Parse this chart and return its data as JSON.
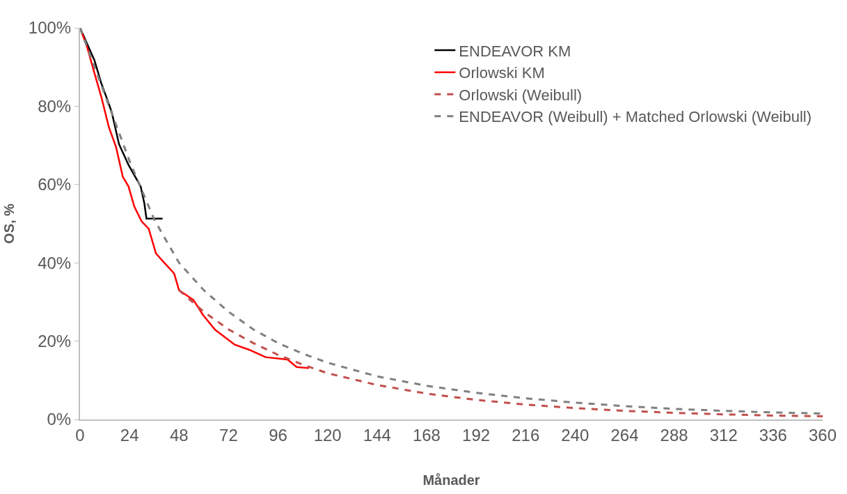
{
  "chart_data": {
    "type": "line",
    "xlabel": "Månader",
    "ylabel": "OS, %",
    "xlim": [
      0,
      360
    ],
    "xticks": [
      0,
      24,
      48,
      72,
      96,
      120,
      144,
      168,
      192,
      216,
      240,
      264,
      288,
      312,
      336,
      360
    ],
    "ylim": [
      0,
      100
    ],
    "yticks": [
      {
        "value": 0,
        "label": "0%"
      },
      {
        "value": 20,
        "label": "20%"
      },
      {
        "value": 40,
        "label": "40%"
      },
      {
        "value": 60,
        "label": "60%"
      },
      {
        "value": 80,
        "label": "80%"
      },
      {
        "value": 100,
        "label": "100%"
      }
    ],
    "grid": false,
    "legend": "top right",
    "marker": "none",
    "series": [
      {
        "name": "ENDEAVOR KM",
        "color": "#000000",
        "line_style": "solid",
        "x": [
          0,
          7,
          10.2,
          13,
          15.4,
          18.9,
          23.5,
          29.4,
          31.2,
          32.2,
          40
        ],
        "values": [
          100,
          91.7,
          86,
          82,
          78.4,
          70.3,
          65,
          59.5,
          55.1,
          51.3,
          51.3
        ]
      },
      {
        "name": "Orlowski KM",
        "color": "#ff0000",
        "line_style": "solid",
        "x": [
          0,
          0.7,
          3.5,
          7,
          10.5,
          14,
          17.5,
          20.7,
          23.5,
          26.3,
          29.8,
          33.3,
          36.8,
          40,
          45.6,
          48,
          55,
          59.6,
          65.5,
          75,
          82,
          90,
          100.6,
          105,
          111
        ],
        "values": [
          100,
          99,
          95,
          88.4,
          82,
          74.6,
          69.5,
          62,
          59.5,
          54.4,
          50.6,
          48.7,
          42.4,
          40.5,
          37.3,
          33,
          30.5,
          26.7,
          22.9,
          19.1,
          17.8,
          15.9,
          15.3,
          13.4,
          13.1
        ]
      },
      {
        "name": "Orlowski (Weibull)",
        "color": "#c0504d",
        "line_style": "dashed",
        "x": [
          48,
          60,
          72,
          84,
          96,
          108,
          120,
          144,
          168,
          192,
          216,
          240,
          264,
          288,
          312,
          336,
          360
        ],
        "values": [
          33,
          27.5,
          23,
          19.5,
          16.5,
          14,
          11.8,
          8.8,
          6.6,
          5,
          3.8,
          2.9,
          2.2,
          1.7,
          1.3,
          1.0,
          0.8
        ]
      },
      {
        "name": "ENDEAVOR (Weibull) + Matched Orlowski (Weibull)",
        "color": "#808080",
        "line_style": "dashed",
        "x": [
          0,
          12,
          24,
          36,
          48,
          60,
          72,
          84,
          96,
          108,
          120,
          144,
          168,
          192,
          216,
          240,
          264,
          288,
          312,
          336,
          360
        ],
        "values": [
          100,
          83,
          66,
          51,
          40,
          33,
          27.5,
          23,
          19.5,
          16.8,
          14.5,
          11,
          8.6,
          6.8,
          5.4,
          4.3,
          3.4,
          2.7,
          2.2,
          1.8,
          1.5
        ]
      }
    ]
  }
}
